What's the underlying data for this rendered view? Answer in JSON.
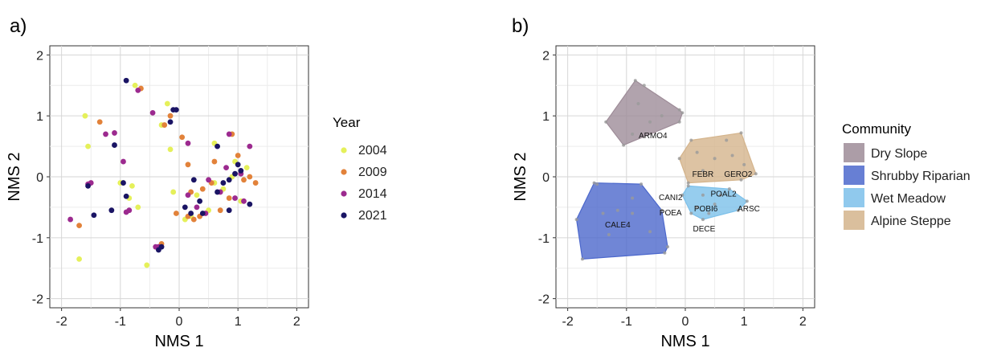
{
  "panels": {
    "a": {
      "label": "a)"
    },
    "b": {
      "label": "b)"
    }
  },
  "chart_data": [
    {
      "type": "scatter",
      "panel": "a",
      "title": "",
      "xlabel": "NMS 1",
      "ylabel": "NMS 2",
      "xlim": [
        -2.2,
        2.2
      ],
      "ylim": [
        -2.15,
        2.15
      ],
      "xticks": [
        -2,
        -1,
        0,
        1,
        2
      ],
      "yticks": [
        -2,
        -1,
        0,
        1,
        2
      ],
      "grid": true,
      "legend": {
        "title": "Year",
        "position": "right"
      },
      "series": [
        {
          "name": "2004",
          "color": "#e5f05a",
          "points": [
            [
              -0.75,
              1.5
            ],
            [
              -1.6,
              1.0
            ],
            [
              -1.55,
              0.5
            ],
            [
              -1.0,
              -0.1
            ],
            [
              -0.8,
              -0.15
            ],
            [
              -0.85,
              -0.35
            ],
            [
              -0.7,
              -0.5
            ],
            [
              -1.7,
              -1.35
            ],
            [
              -0.55,
              -1.45
            ],
            [
              -0.2,
              1.2
            ],
            [
              -0.3,
              0.85
            ],
            [
              -0.15,
              0.45
            ],
            [
              0.1,
              -0.7
            ],
            [
              -0.1,
              -0.25
            ],
            [
              0.6,
              0.55
            ],
            [
              0.9,
              0.0
            ],
            [
              1.15,
              0.15
            ],
            [
              0.75,
              -0.2
            ],
            [
              0.5,
              -0.55
            ],
            [
              0.3,
              -0.3
            ],
            [
              0.2,
              -0.65
            ],
            [
              1.05,
              -0.4
            ],
            [
              0.6,
              -0.1
            ],
            [
              0.95,
              0.25
            ]
          ]
        },
        {
          "name": "2009",
          "color": "#e2823a",
          "points": [
            [
              -1.35,
              0.9
            ],
            [
              -0.65,
              1.45
            ],
            [
              -0.25,
              0.85
            ],
            [
              -0.15,
              1.0
            ],
            [
              -1.7,
              -0.8
            ],
            [
              -0.3,
              -1.1
            ],
            [
              0.15,
              -0.65
            ],
            [
              0.05,
              0.65
            ],
            [
              0.9,
              0.7
            ],
            [
              1.0,
              0.35
            ],
            [
              1.2,
              0.0
            ],
            [
              1.3,
              -0.1
            ],
            [
              0.25,
              -0.7
            ],
            [
              0.4,
              -0.2
            ],
            [
              0.55,
              -0.1
            ],
            [
              0.85,
              -0.35
            ],
            [
              0.2,
              -0.25
            ],
            [
              0.7,
              -0.55
            ],
            [
              0.35,
              -0.65
            ],
            [
              0.6,
              0.25
            ],
            [
              1.1,
              -0.05
            ],
            [
              0.15,
              0.2
            ],
            [
              -0.05,
              -0.6
            ]
          ]
        },
        {
          "name": "2014",
          "color": "#9c2a8f",
          "points": [
            [
              -0.7,
              1.42
            ],
            [
              -0.45,
              1.05
            ],
            [
              -1.25,
              0.7
            ],
            [
              -1.1,
              0.72
            ],
            [
              -0.95,
              0.25
            ],
            [
              -1.5,
              -0.1
            ],
            [
              -1.55,
              -0.12
            ],
            [
              -1.85,
              -0.7
            ],
            [
              -0.85,
              -0.55
            ],
            [
              -0.9,
              -0.58
            ],
            [
              -0.4,
              -1.15
            ],
            [
              -0.35,
              -1.15
            ],
            [
              0.15,
              0.55
            ],
            [
              0.85,
              0.7
            ],
            [
              1.2,
              0.5
            ],
            [
              1.05,
              0.05
            ],
            [
              0.95,
              -0.35
            ],
            [
              0.5,
              -0.05
            ],
            [
              0.7,
              -0.25
            ],
            [
              1.1,
              -0.4
            ],
            [
              0.3,
              -0.5
            ],
            [
              0.15,
              -0.3
            ],
            [
              0.8,
              0.15
            ],
            [
              0.45,
              -0.6
            ]
          ]
        },
        {
          "name": "2021",
          "color": "#1a1464",
          "points": [
            [
              -0.9,
              1.58
            ],
            [
              -0.1,
              1.1
            ],
            [
              -0.05,
              1.1
            ],
            [
              -0.15,
              0.9
            ],
            [
              -1.1,
              0.52
            ],
            [
              -1.55,
              -0.15
            ],
            [
              -1.45,
              -0.63
            ],
            [
              -1.15,
              -0.55
            ],
            [
              -0.95,
              -0.1
            ],
            [
              -0.9,
              -0.32
            ],
            [
              -0.3,
              -1.15
            ],
            [
              -0.35,
              -1.2
            ],
            [
              1.0,
              0.2
            ],
            [
              1.05,
              0.1
            ],
            [
              0.95,
              0.05
            ],
            [
              0.85,
              -0.05
            ],
            [
              0.75,
              -0.1
            ],
            [
              0.65,
              -0.25
            ],
            [
              0.25,
              -0.05
            ],
            [
              0.35,
              -0.4
            ],
            [
              0.2,
              -0.6
            ],
            [
              0.1,
              -0.5
            ],
            [
              0.65,
              0.5
            ],
            [
              1.2,
              -0.45
            ],
            [
              0.4,
              -0.6
            ],
            [
              0.85,
              -0.55
            ]
          ]
        }
      ]
    },
    {
      "type": "polygon",
      "panel": "b",
      "title": "",
      "xlabel": "NMS 1",
      "ylabel": "NMS 2",
      "xlim": [
        -2.2,
        2.2
      ],
      "ylim": [
        -2.15,
        2.15
      ],
      "xticks": [
        -2,
        -1,
        0,
        1,
        2
      ],
      "yticks": [
        -2,
        -1,
        0,
        1,
        2
      ],
      "grid": true,
      "legend": {
        "title": "Community",
        "position": "right"
      },
      "series": [
        {
          "name": "Dry Slope",
          "color": "#9e8c98",
          "hull": [
            [
              -0.85,
              1.58
            ],
            [
              -0.1,
              1.1
            ],
            [
              -0.05,
              1.05
            ],
            [
              -0.1,
              0.9
            ],
            [
              -1.05,
              0.52
            ],
            [
              -1.35,
              0.9
            ]
          ],
          "points": [
            [
              -0.85,
              1.58
            ],
            [
              -0.7,
              1.5
            ],
            [
              -0.1,
              1.1
            ],
            [
              -0.05,
              1.05
            ],
            [
              -0.1,
              0.9
            ],
            [
              -1.05,
              0.52
            ],
            [
              -1.35,
              0.9
            ],
            [
              -0.6,
              0.9
            ],
            [
              -0.8,
              1.2
            ],
            [
              -0.4,
              1.0
            ],
            [
              -0.9,
              0.7
            ]
          ]
        },
        {
          "name": "Shrubby Riparian",
          "color": "#4c68cc",
          "hull": [
            [
              -1.55,
              -0.1
            ],
            [
              -0.75,
              -0.12
            ],
            [
              -0.4,
              -0.55
            ],
            [
              -0.3,
              -1.15
            ],
            [
              -0.35,
              -1.25
            ],
            [
              -1.75,
              -1.35
            ],
            [
              -1.85,
              -0.7
            ]
          ],
          "points": [
            [
              -1.55,
              -0.1
            ],
            [
              -1.5,
              -0.12
            ],
            [
              -0.75,
              -0.12
            ],
            [
              -0.4,
              -0.55
            ],
            [
              -0.3,
              -1.15
            ],
            [
              -0.35,
              -1.25
            ],
            [
              -1.75,
              -1.35
            ],
            [
              -1.85,
              -0.7
            ],
            [
              -1.15,
              -0.55
            ],
            [
              -1.4,
              -0.6
            ],
            [
              -0.9,
              -0.35
            ],
            [
              -0.9,
              -0.6
            ],
            [
              -1.3,
              -0.95
            ],
            [
              -0.6,
              -0.9
            ]
          ]
        },
        {
          "name": "Wet Meadow",
          "color": "#7cc0ea",
          "hull": [
            [
              0.05,
              -0.15
            ],
            [
              0.75,
              -0.2
            ],
            [
              1.05,
              -0.4
            ],
            [
              0.9,
              -0.55
            ],
            [
              0.3,
              -0.7
            ],
            [
              0.1,
              -0.6
            ],
            [
              -0.05,
              -0.3
            ]
          ],
          "points": [
            [
              0.05,
              -0.15
            ],
            [
              0.75,
              -0.2
            ],
            [
              1.05,
              -0.4
            ],
            [
              0.9,
              -0.55
            ],
            [
              0.3,
              -0.7
            ],
            [
              0.1,
              -0.6
            ],
            [
              -0.05,
              -0.3
            ],
            [
              0.3,
              -0.3
            ],
            [
              0.5,
              -0.45
            ],
            [
              0.2,
              -0.5
            ],
            [
              0.6,
              -0.3
            ],
            [
              0.4,
              -0.6
            ]
          ]
        },
        {
          "name": "Alpine Steppe",
          "color": "#d4b48c",
          "hull": [
            [
              0.1,
              0.6
            ],
            [
              0.95,
              0.72
            ],
            [
              1.2,
              0.05
            ],
            [
              0.95,
              -0.05
            ],
            [
              0.05,
              -0.1
            ],
            [
              -0.1,
              0.3
            ]
          ],
          "points": [
            [
              0.1,
              0.6
            ],
            [
              0.95,
              0.72
            ],
            [
              1.2,
              0.05
            ],
            [
              0.95,
              -0.05
            ],
            [
              0.05,
              -0.1
            ],
            [
              -0.1,
              0.3
            ],
            [
              0.5,
              0.3
            ],
            [
              0.8,
              0.35
            ],
            [
              1.0,
              0.2
            ],
            [
              0.3,
              0.1
            ],
            [
              0.7,
              0.6
            ],
            [
              0.2,
              0.4
            ]
          ]
        }
      ],
      "annotations": [
        {
          "text": "ARMO4",
          "x": -0.55,
          "y": 0.63
        },
        {
          "text": "FEBR",
          "x": 0.3,
          "y": 0.0
        },
        {
          "text": "GERO2",
          "x": 0.9,
          "y": 0.0
        },
        {
          "text": "POAL2",
          "x": 0.65,
          "y": -0.32
        },
        {
          "text": "CANI2",
          "x": -0.25,
          "y": -0.38
        },
        {
          "text": "POBI6",
          "x": 0.35,
          "y": -0.57
        },
        {
          "text": "POEA",
          "x": -0.25,
          "y": -0.63
        },
        {
          "text": "ARSC",
          "x": 1.08,
          "y": -0.57
        },
        {
          "text": "CALE4",
          "x": -1.15,
          "y": -0.83
        },
        {
          "text": "DECE",
          "x": 0.32,
          "y": -0.9
        }
      ]
    }
  ]
}
